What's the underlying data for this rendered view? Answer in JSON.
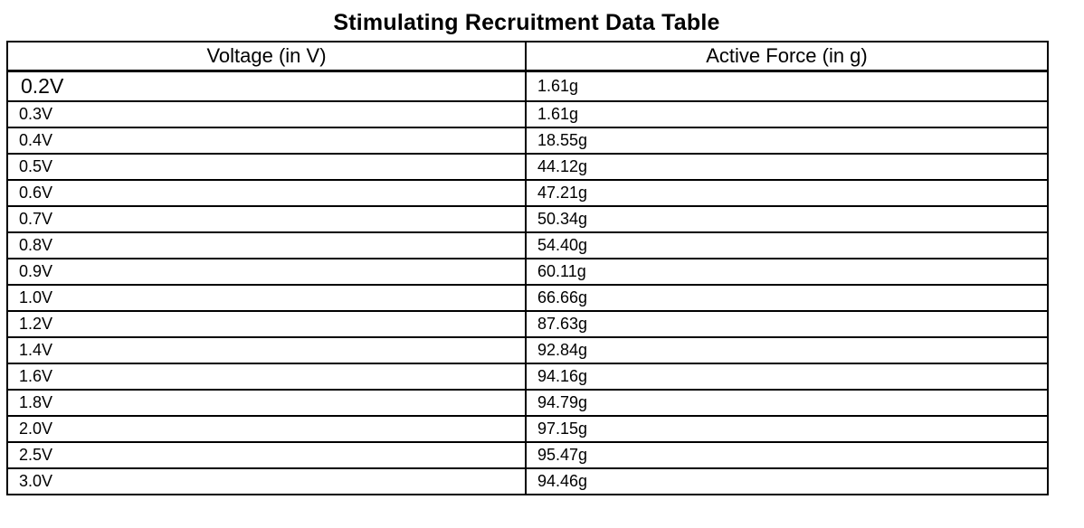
{
  "page": {
    "title": "Stimulating Recruitment Data Table"
  },
  "table": {
    "columns": [
      {
        "key": "voltage",
        "label": "Voltage (in V)"
      },
      {
        "key": "force",
        "label": "Active Force (in g)"
      }
    ],
    "rows": [
      {
        "voltage": "0.2V",
        "force": "1.61g"
      },
      {
        "voltage": "0.3V",
        "force": "1.61g"
      },
      {
        "voltage": "0.4V",
        "force": "18.55g"
      },
      {
        "voltage": "0.5V",
        "force": "44.12g"
      },
      {
        "voltage": "0.6V",
        "force": "47.21g"
      },
      {
        "voltage": "0.7V",
        "force": "50.34g"
      },
      {
        "voltage": "0.8V",
        "force": "54.40g"
      },
      {
        "voltage": "0.9V",
        "force": "60.11g"
      },
      {
        "voltage": "1.0V",
        "force": "66.66g"
      },
      {
        "voltage": "1.2V",
        "force": "87.63g"
      },
      {
        "voltage": "1.4V",
        "force": "92.84g"
      },
      {
        "voltage": "1.6V",
        "force": "94.16g"
      },
      {
        "voltage": "1.8V",
        "force": "94.79g"
      },
      {
        "voltage": "2.0V",
        "force": "97.15g"
      },
      {
        "voltage": "2.5V",
        "force": "95.47g"
      },
      {
        "voltage": "3.0V",
        "force": "94.46g"
      }
    ]
  },
  "colors": {
    "background": "#ffffff",
    "text": "#000000",
    "border": "#000000"
  },
  "chart_data": {
    "type": "table",
    "title": "Stimulating Recruitment Data Table",
    "columns": [
      "Voltage (in V)",
      "Active Force (in g)"
    ],
    "x_voltage_V": [
      0.2,
      0.3,
      0.4,
      0.5,
      0.6,
      0.7,
      0.8,
      0.9,
      1.0,
      1.2,
      1.4,
      1.6,
      1.8,
      2.0,
      2.5,
      3.0
    ],
    "y_active_force_g": [
      1.61,
      1.61,
      18.55,
      44.12,
      47.21,
      50.34,
      54.4,
      60.11,
      66.66,
      87.63,
      92.84,
      94.16,
      94.79,
      97.15,
      95.47,
      94.46
    ]
  }
}
